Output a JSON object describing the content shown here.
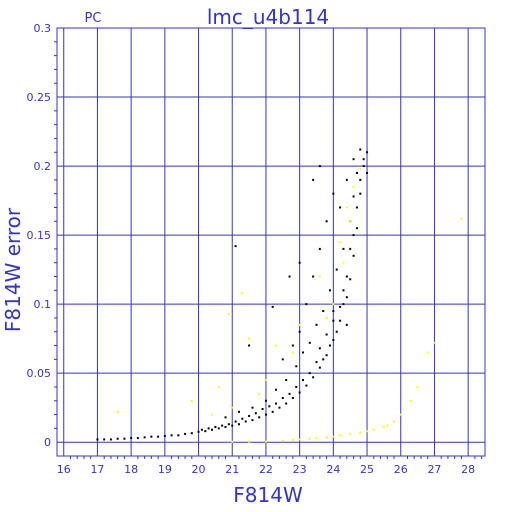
{
  "chart_data": {
    "type": "scatter",
    "title": "lmc_u4b114",
    "subtitle": "PC",
    "xlabel": "F814W",
    "ylabel": "F814W error",
    "xlim": [
      15.8,
      28.5
    ],
    "ylim": [
      -0.01,
      0.3
    ],
    "x_ticks": [
      "16",
      "17",
      "18",
      "19",
      "20",
      "21",
      "22",
      "23",
      "24",
      "25",
      "26",
      "27",
      "28"
    ],
    "y_ticks": [
      "0",
      "0.05",
      "0.1",
      "0.15",
      "0.2",
      "0.25",
      "0.3"
    ],
    "grid": true,
    "colors": {
      "axis": "#3333cc",
      "grid": "#3333cc",
      "series_primary": "#000000",
      "series_secondary": "#ffff00"
    },
    "series": [
      {
        "color": "#000000",
        "points": [
          [
            17.0,
            0.002
          ],
          [
            17.2,
            0.002
          ],
          [
            17.4,
            0.002
          ],
          [
            17.6,
            0.0025
          ],
          [
            17.8,
            0.0025
          ],
          [
            18.0,
            0.003
          ],
          [
            18.2,
            0.003
          ],
          [
            18.4,
            0.0035
          ],
          [
            18.6,
            0.004
          ],
          [
            18.8,
            0.004
          ],
          [
            19.0,
            0.0045
          ],
          [
            19.2,
            0.005
          ],
          [
            19.4,
            0.005
          ],
          [
            19.6,
            0.006
          ],
          [
            19.8,
            0.0065
          ],
          [
            20.0,
            0.0075
          ],
          [
            20.2,
            0.008
          ],
          [
            20.4,
            0.009
          ],
          [
            20.6,
            0.01
          ],
          [
            20.8,
            0.011
          ],
          [
            21.0,
            0.012
          ],
          [
            21.2,
            0.013
          ],
          [
            21.4,
            0.015
          ],
          [
            21.6,
            0.016
          ],
          [
            21.8,
            0.018
          ],
          [
            22.0,
            0.02
          ],
          [
            22.2,
            0.022
          ],
          [
            22.4,
            0.025
          ],
          [
            22.6,
            0.028
          ],
          [
            22.8,
            0.032
          ],
          [
            23.0,
            0.036
          ],
          [
            23.2,
            0.041
          ],
          [
            23.4,
            0.047
          ],
          [
            23.6,
            0.054
          ],
          [
            23.8,
            0.063
          ],
          [
            24.0,
            0.074
          ],
          [
            24.2,
            0.088
          ],
          [
            24.4,
            0.105
          ],
          [
            24.5,
            0.118
          ],
          [
            24.6,
            0.135
          ],
          [
            24.7,
            0.155
          ],
          [
            24.8,
            0.18
          ],
          [
            24.9,
            0.2
          ],
          [
            25.0,
            0.21
          ],
          [
            20.8,
            0.018
          ],
          [
            21.2,
            0.022
          ],
          [
            21.6,
            0.025
          ],
          [
            22.0,
            0.03
          ],
          [
            22.3,
            0.038
          ],
          [
            22.6,
            0.045
          ],
          [
            22.9,
            0.055
          ],
          [
            23.1,
            0.065
          ],
          [
            23.3,
            0.072
          ],
          [
            23.5,
            0.085
          ],
          [
            23.7,
            0.095
          ],
          [
            23.9,
            0.11
          ],
          [
            24.1,
            0.125
          ],
          [
            24.3,
            0.14
          ],
          [
            24.5,
            0.16
          ],
          [
            24.6,
            0.178
          ],
          [
            24.7,
            0.195
          ],
          [
            24.8,
            0.212
          ],
          [
            23.0,
            0.08
          ],
          [
            23.2,
            0.1
          ],
          [
            23.4,
            0.12
          ],
          [
            23.6,
            0.14
          ],
          [
            23.8,
            0.16
          ],
          [
            24.0,
            0.18
          ],
          [
            22.5,
            0.06
          ],
          [
            22.8,
            0.07
          ],
          [
            23.4,
            0.19
          ],
          [
            23.6,
            0.2
          ],
          [
            21.1,
            0.142
          ],
          [
            21.5,
            0.07
          ],
          [
            22.2,
            0.098
          ],
          [
            22.7,
            0.12
          ],
          [
            23.0,
            0.13
          ],
          [
            24.2,
            0.17
          ],
          [
            24.4,
            0.19
          ],
          [
            24.6,
            0.205
          ],
          [
            24.0,
            0.095
          ],
          [
            24.1,
            0.08
          ],
          [
            24.3,
            0.1
          ],
          [
            24.4,
            0.085
          ],
          [
            23.9,
            0.07
          ],
          [
            23.7,
            0.06
          ],
          [
            23.5,
            0.058
          ],
          [
            23.3,
            0.05
          ],
          [
            23.1,
            0.045
          ],
          [
            22.9,
            0.04
          ],
          [
            22.7,
            0.035
          ],
          [
            22.5,
            0.032
          ],
          [
            22.3,
            0.028
          ],
          [
            22.1,
            0.026
          ],
          [
            21.9,
            0.024
          ],
          [
            21.7,
            0.021
          ],
          [
            21.5,
            0.019
          ],
          [
            21.3,
            0.017
          ],
          [
            21.1,
            0.015
          ],
          [
            20.9,
            0.013
          ],
          [
            20.7,
            0.012
          ],
          [
            20.5,
            0.011
          ],
          [
            20.3,
            0.01
          ],
          [
            20.1,
            0.009
          ],
          [
            24.5,
            0.14
          ],
          [
            24.6,
            0.15
          ],
          [
            24.7,
            0.17
          ],
          [
            24.8,
            0.19
          ],
          [
            24.9,
            0.205
          ],
          [
            25.0,
            0.195
          ],
          [
            24.4,
            0.12
          ],
          [
            24.3,
            0.11
          ],
          [
            24.2,
            0.098
          ],
          [
            24.0,
            0.088
          ],
          [
            23.8,
            0.078
          ],
          [
            23.6,
            0.068
          ]
        ]
      },
      {
        "color": "#ffff00",
        "points": [
          [
            17.6,
            0.022
          ],
          [
            19.8,
            0.03
          ],
          [
            20.6,
            0.04
          ],
          [
            20.9,
            0.093
          ],
          [
            21.3,
            0.108
          ],
          [
            21.5,
            0.075
          ],
          [
            22.3,
            0.07
          ],
          [
            22.8,
            0.065
          ],
          [
            23.0,
            0.085
          ],
          [
            23.6,
            0.12
          ],
          [
            24.2,
            0.145
          ],
          [
            24.4,
            0.17
          ],
          [
            24.6,
            0.185
          ],
          [
            24.8,
            0.198
          ],
          [
            24.5,
            0.16
          ],
          [
            24.3,
            0.13
          ],
          [
            24.0,
            0.1
          ],
          [
            23.8,
            0.09
          ],
          [
            21.8,
            0.035
          ],
          [
            22.0,
            0.045
          ],
          [
            21.0,
            0.025
          ],
          [
            20.4,
            0.02
          ],
          [
            22.0,
            0.0005
          ],
          [
            22.5,
            0.001
          ],
          [
            23.0,
            0.002
          ],
          [
            23.5,
            0.003
          ],
          [
            24.0,
            0.004
          ],
          [
            24.5,
            0.006
          ],
          [
            25.0,
            0.008
          ],
          [
            25.5,
            0.011
          ],
          [
            25.8,
            0.015
          ],
          [
            26.0,
            0.02
          ],
          [
            26.3,
            0.03
          ],
          [
            26.5,
            0.04
          ],
          [
            26.8,
            0.065
          ],
          [
            27.0,
            0.072
          ],
          [
            27.8,
            0.162
          ],
          [
            25.2,
            0.009
          ],
          [
            24.8,
            0.007
          ],
          [
            24.2,
            0.005
          ],
          [
            23.8,
            0.0035
          ],
          [
            23.3,
            0.0025
          ],
          [
            22.8,
            0.0015
          ],
          [
            21.5,
            0.0005
          ],
          [
            21.0,
            0.0003
          ],
          [
            25.6,
            0.012
          ]
        ]
      }
    ]
  }
}
